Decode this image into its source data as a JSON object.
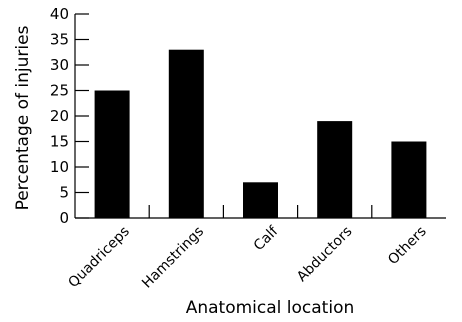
{
  "chart_data": {
    "type": "bar",
    "title": "",
    "xlabel": "Anatomical location",
    "ylabel": "Percentage of injuries",
    "categories": [
      "Quadriceps",
      "Hamstrings",
      "Calf",
      "Abductors",
      "Others"
    ],
    "values": [
      25,
      33,
      7,
      19,
      15
    ],
    "ylim": [
      0,
      40
    ],
    "yticks": [
      0,
      5,
      10,
      15,
      20,
      25,
      30,
      35,
      40
    ],
    "grid": false,
    "legend": "none",
    "bar_color": "#000000"
  }
}
